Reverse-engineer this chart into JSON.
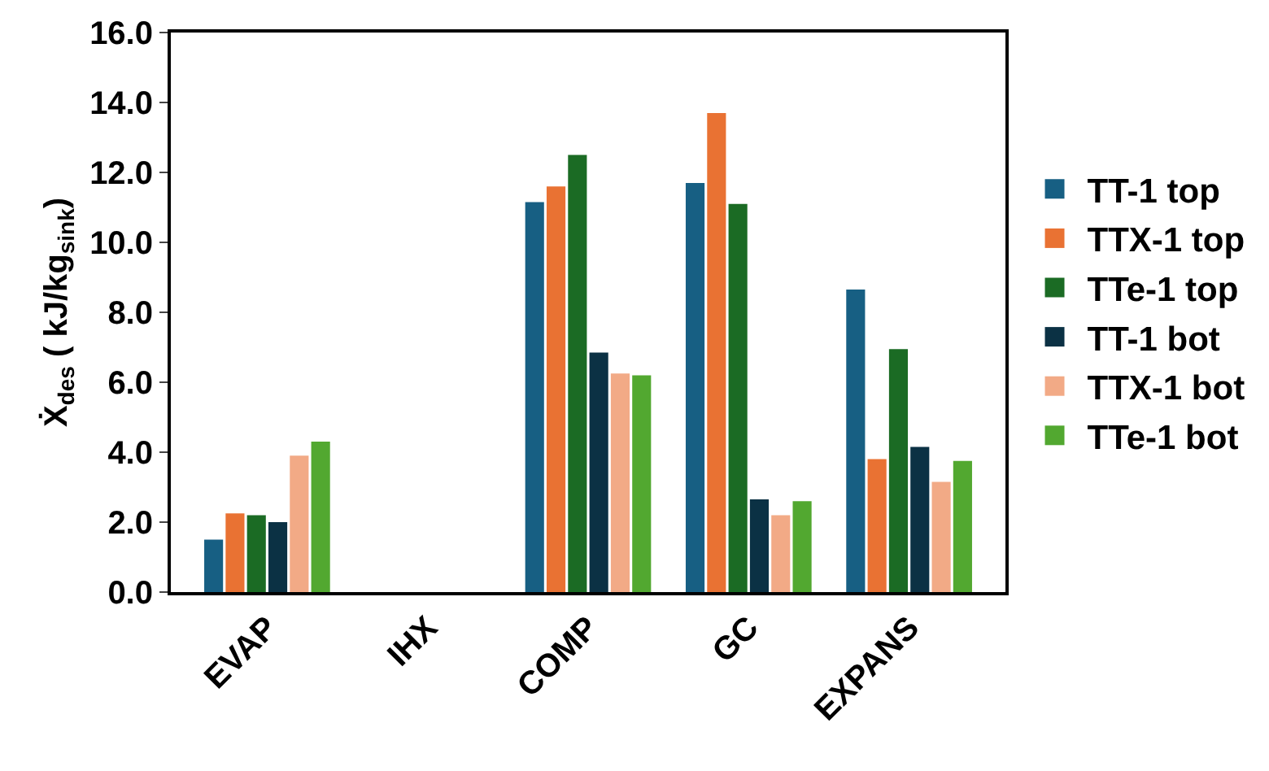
{
  "chart_data": {
    "type": "bar",
    "ylabel": "Ẋ$_{des}$ ( kJ/kg$_{sink}$)",
    "categories": [
      "EVAP",
      "IHX",
      "COMP",
      "GC",
      "EXPANS"
    ],
    "series": [
      {
        "name": "TT-1 top",
        "color": "#175f83",
        "values": [
          1.5,
          null,
          11.15,
          11.7,
          8.65
        ]
      },
      {
        "name": "TTX-1 top",
        "color": "#e97233",
        "values": [
          2.25,
          null,
          11.6,
          13.7,
          3.8
        ]
      },
      {
        "name": "TTe-1 top",
        "color": "#1b6b24",
        "values": [
          2.2,
          null,
          12.5,
          11.1,
          6.95
        ]
      },
      {
        "name": "TT-1 bot",
        "color": "#0b3144",
        "values": [
          2.0,
          null,
          6.85,
          2.65,
          4.15
        ]
      },
      {
        "name": "TTX-1 bot",
        "color": "#f2aa86",
        "values": [
          3.9,
          null,
          6.25,
          2.2,
          3.15
        ]
      },
      {
        "name": "TTe-1 bot",
        "color": "#52a830",
        "values": [
          4.3,
          null,
          6.2,
          2.6,
          3.75
        ]
      }
    ],
    "ylim": [
      0,
      16
    ],
    "yticks": [
      {
        "value": 0,
        "label": "0.0"
      },
      {
        "value": 2,
        "label": "2.0"
      },
      {
        "value": 4,
        "label": "4.0"
      },
      {
        "value": 6,
        "label": "6.0"
      },
      {
        "value": 8,
        "label": "8.0"
      },
      {
        "value": 10,
        "label": "10.0"
      },
      {
        "value": 12,
        "label": "12.0"
      },
      {
        "value": 14,
        "label": "14.0"
      },
      {
        "value": 16,
        "label": "16.0"
      }
    ],
    "legend": "right"
  }
}
